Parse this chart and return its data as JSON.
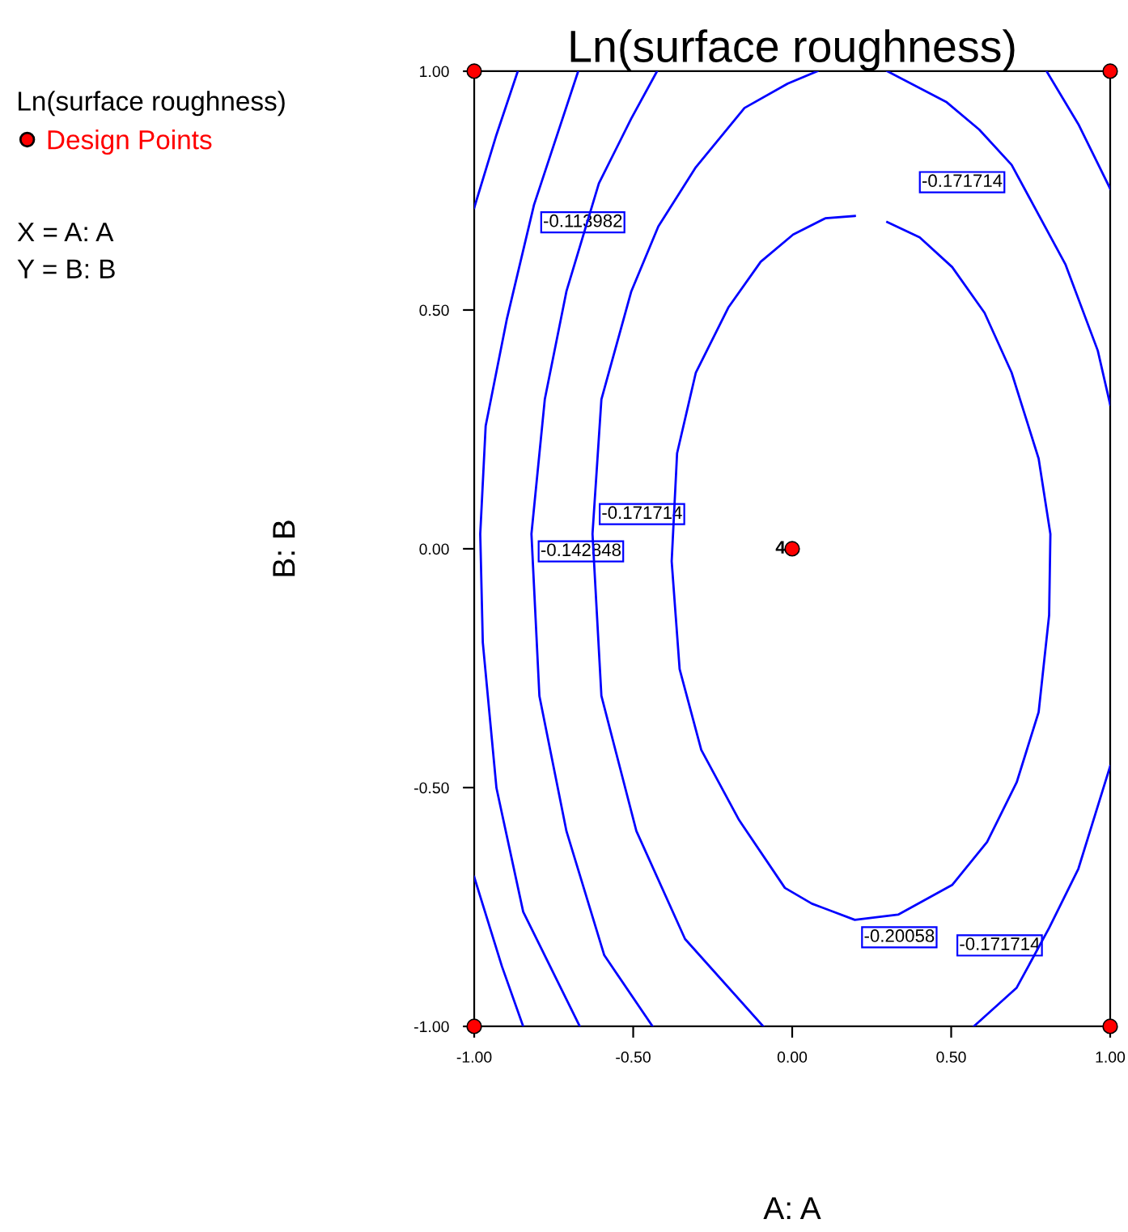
{
  "chart_data": {
    "type": "line",
    "title": "Ln(surface roughness)",
    "xlabel": "A: A",
    "ylabel": "B: B",
    "legend_title": "Ln(surface roughness)",
    "legend": "left",
    "grid": false,
    "xlim": [
      -1,
      1
    ],
    "ylim": [
      -1,
      1
    ],
    "xticks": [
      {
        "value": -1,
        "label": "-1.00"
      },
      {
        "value": -0.5,
        "label": "-0.50"
      },
      {
        "value": 0,
        "label": "0.00"
      },
      {
        "value": 0.5,
        "label": "0.50"
      },
      {
        "value": 1,
        "label": "1.00"
      }
    ],
    "yticks": [
      {
        "value": -1,
        "label": "-1.00"
      },
      {
        "value": -0.5,
        "label": "-0.50"
      },
      {
        "value": 0,
        "label": "0.00"
      },
      {
        "value": 0.5,
        "label": "0.50"
      },
      {
        "value": 1,
        "label": "1.00"
      }
    ],
    "series": [
      {
        "type": "line",
        "color": "#0000ff",
        "x": [
          -0.863,
          -0.93,
          -1.0
        ],
        "values": [
          1.0,
          0.867,
          0.714
        ]
      },
      {
        "type": "line",
        "color": "#0000ff",
        "x": [
          -1.0,
          -0.913,
          -0.846
        ],
        "values": [
          -0.687,
          -0.874,
          -1.0
        ]
      },
      {
        "type": "line",
        "color": "#0000ff",
        "x": [
          -0.673,
          -0.812,
          -0.897,
          -0.964,
          -0.981,
          -0.973,
          -0.93,
          -0.846,
          -0.668
        ],
        "values": [
          1.0,
          0.72,
          0.482,
          0.257,
          0.031,
          -0.196,
          -0.501,
          -0.76,
          -1.0
        ]
      },
      {
        "type": "line",
        "color": "#0000ff",
        "x": [
          -0.425,
          -0.506,
          -0.608,
          -0.71,
          -0.778,
          -0.82,
          -0.795,
          -0.71,
          -0.591,
          -0.439
        ],
        "values": [
          1.0,
          0.901,
          0.765,
          0.539,
          0.313,
          0.031,
          -0.308,
          -0.591,
          -0.851,
          -1.0
        ]
      },
      {
        "type": "line",
        "color": "#0000ff",
        "x": [
          0.8,
          0.9,
          1.0
        ],
        "values": [
          1.0,
          0.889,
          0.754
        ]
      },
      {
        "type": "line",
        "color": "#0000ff",
        "x": [
          0.079,
          -0.014,
          -0.15,
          -0.303,
          -0.421,
          -0.506,
          -0.6,
          -0.628,
          -0.6,
          -0.49,
          -0.337,
          -0.091
        ],
        "values": [
          1.0,
          0.974,
          0.923,
          0.799,
          0.675,
          0.539,
          0.313,
          0.031,
          -0.308,
          -0.591,
          -0.817,
          -1.0
        ]
      },
      {
        "type": "line",
        "color": "#0000ff",
        "x": [
          0.299,
          0.486,
          0.588,
          0.69,
          0.859,
          0.961,
          1.0
        ],
        "values": [
          1.0,
          0.935,
          0.878,
          0.804,
          0.596,
          0.415,
          0.302
        ]
      },
      {
        "type": "line",
        "color": "#0000ff",
        "x": [
          1.0,
          0.9,
          0.808,
          0.706,
          0.571
        ],
        "values": [
          -0.455,
          -0.67,
          -0.794,
          -0.919,
          -1.0
        ]
      },
      {
        "color": "#0000ff",
        "x": [
          0.197,
          0.104,
          0.003,
          -0.099,
          -0.201,
          -0.303,
          -0.362,
          -0.379,
          -0.354,
          -0.286,
          -0.167,
          -0.023,
          0.062,
          0.197,
          0.333,
          0.503,
          0.613,
          0.706,
          0.775,
          0.808,
          0.812,
          0.775,
          0.69,
          0.605,
          0.503,
          0.401,
          0.299
        ],
        "values": [
          0.697,
          0.692,
          0.658,
          0.601,
          0.505,
          0.369,
          0.2,
          -0.026,
          -0.252,
          -0.421,
          -0.568,
          -0.71,
          -0.743,
          -0.777,
          -0.766,
          -0.704,
          -0.614,
          -0.489,
          -0.342,
          -0.139,
          0.031,
          0.189,
          0.369,
          0.494,
          0.59,
          0.652,
          0.684
        ]
      },
      {
        "type": "scatter",
        "name": "Design Points",
        "color": "#ff0000",
        "marker": "circle",
        "x": [
          -1,
          -1,
          1,
          1,
          0
        ],
        "values": [
          -1,
          1,
          -1,
          1,
          0
        ]
      }
    ],
    "annotations": [
      {
        "text": "-0.113982",
        "x": -0.812,
        "y": 0.72
      },
      {
        "text": "-0.171714",
        "x": -0.628,
        "y": 0.109
      },
      {
        "text": "-0.142848",
        "x": -0.82,
        "y": 0.031
      },
      {
        "text": "-0.171714",
        "x": 0.69,
        "y": 0.804
      },
      {
        "text": "-0.20058",
        "x": 0.197,
        "y": -0.777
      },
      {
        "text": "-0.171714",
        "x": 0.808,
        "y": -0.794
      },
      {
        "text": "4",
        "x": 0,
        "y": 0
      },
      "X = A: A",
      "Y = B: B"
    ]
  }
}
